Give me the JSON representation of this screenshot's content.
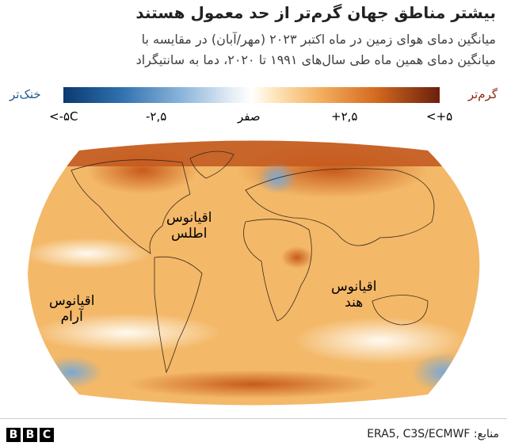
{
  "header": {
    "title": "بیشتر مناطق جهان گرم‌تر از حد معمول هستند",
    "subtitle": [
      "میانگین دمای هوای زمین در ماه اکتبر ۲۰۲۳ (مهر/آبان) در مقایسه با",
      "میانگین دمای همین ماه طی سال‌های ۱۹۹۱ تا ۲۰۲۰، دما به سانتیگراد"
    ]
  },
  "legend": {
    "cold": "خنک‌تر",
    "warm": "گرم‌تر",
    "ticks": [
      "<-۵C",
      "-۲,۵",
      "صفر",
      "+۲,۵",
      "<+۵"
    ]
  },
  "map": {
    "labels": [
      [
        "اقیانوس",
        "اطلس"
      ],
      [
        "اقیانوس",
        "آرام"
      ],
      [
        "اقیانوس",
        "هند"
      ]
    ]
  },
  "footer": {
    "logo": [
      "B",
      "B",
      "C"
    ],
    "source": "منابع: ERA5, C3S/ECMWF"
  }
}
